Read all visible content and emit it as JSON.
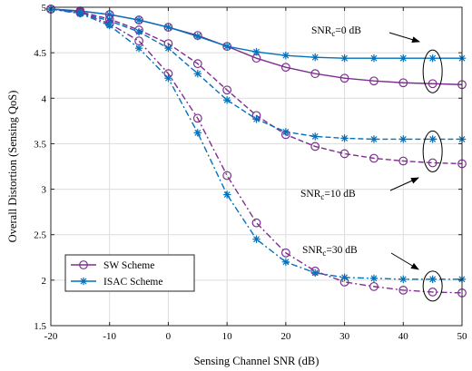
{
  "chart_data": {
    "type": "line",
    "xlabel": "Sensing Channel SNR (dB)",
    "ylabel": "Overall Distortion (Sensing QoS)",
    "xlim": [
      -20,
      50
    ],
    "ylim": [
      1.5,
      5
    ],
    "xticks": [
      "-20",
      "-10",
      "0",
      "10",
      "20",
      "30",
      "40",
      "50"
    ],
    "yticks": [
      "1.5",
      "2",
      "2.5",
      "3",
      "3.5",
      "4",
      "4.5",
      "5"
    ],
    "grid": true,
    "legend_position": "bottom-left",
    "x": [
      -20,
      -15,
      -10,
      -5,
      0,
      5,
      10,
      15,
      20,
      25,
      30,
      35,
      40,
      45,
      50
    ],
    "series": [
      {
        "name": "SW Scheme",
        "snr_c": "SNR_c=0 dB",
        "style": "solid",
        "marker": "circle",
        "color": "#7E2F8E",
        "values": [
          4.98,
          4.96,
          4.92,
          4.86,
          4.78,
          4.69,
          4.57,
          4.44,
          4.34,
          4.27,
          4.22,
          4.19,
          4.17,
          4.16,
          4.15
        ]
      },
      {
        "name": "ISAC Scheme",
        "snr_c": "SNR_c=0 dB",
        "style": "solid",
        "marker": "star",
        "color": "#0072BD",
        "values": [
          4.98,
          4.96,
          4.92,
          4.86,
          4.78,
          4.68,
          4.57,
          4.51,
          4.47,
          4.45,
          4.44,
          4.44,
          4.44,
          4.44,
          4.44
        ]
      },
      {
        "name": "SW Scheme",
        "snr_c": "SNR_c=10 dB",
        "style": "dashed",
        "marker": "circle",
        "color": "#7E2F8E",
        "values": [
          4.98,
          4.95,
          4.87,
          4.75,
          4.6,
          4.38,
          4.09,
          3.81,
          3.6,
          3.47,
          3.39,
          3.34,
          3.31,
          3.29,
          3.28
        ]
      },
      {
        "name": "ISAC Scheme",
        "snr_c": "SNR_c=10 dB",
        "style": "dashed",
        "marker": "star",
        "color": "#0072BD",
        "values": [
          4.98,
          4.94,
          4.85,
          4.73,
          4.55,
          4.27,
          3.98,
          3.77,
          3.63,
          3.58,
          3.56,
          3.55,
          3.55,
          3.55,
          3.55
        ]
      },
      {
        "name": "SW Scheme",
        "snr_c": "SNR_c=30 dB",
        "style": "dashdot",
        "marker": "circle",
        "color": "#7E2F8E",
        "values": [
          4.98,
          4.94,
          4.82,
          4.63,
          4.27,
          3.78,
          3.15,
          2.63,
          2.3,
          2.1,
          1.98,
          1.93,
          1.89,
          1.87,
          1.86
        ]
      },
      {
        "name": "ISAC Scheme",
        "snr_c": "SNR_c=30 dB",
        "style": "dashdot",
        "marker": "star",
        "color": "#0072BD",
        "values": [
          4.98,
          4.93,
          4.8,
          4.55,
          4.22,
          3.62,
          2.94,
          2.45,
          2.2,
          2.08,
          2.03,
          2.02,
          2.01,
          2.01,
          2.01
        ]
      }
    ],
    "legend": [
      {
        "label": "SW Scheme",
        "color": "#7E2F8E",
        "marker": "circle"
      },
      {
        "label": "ISAC Scheme",
        "color": "#0072BD",
        "marker": "star"
      }
    ],
    "annotations": [
      {
        "prefix": "SNR",
        "subscript": "c",
        "suffix": "=0 dB",
        "at_x": 45,
        "ellipse_y": [
          4.44,
          4.15
        ]
      },
      {
        "prefix": "SNR",
        "subscript": "c",
        "suffix": "=10 dB",
        "at_x": 45,
        "ellipse_y": [
          3.55,
          3.28
        ]
      },
      {
        "prefix": "SNR",
        "subscript": "c",
        "suffix": "=30 dB",
        "at_x": 45,
        "ellipse_y": [
          2.01,
          1.86
        ]
      }
    ]
  }
}
